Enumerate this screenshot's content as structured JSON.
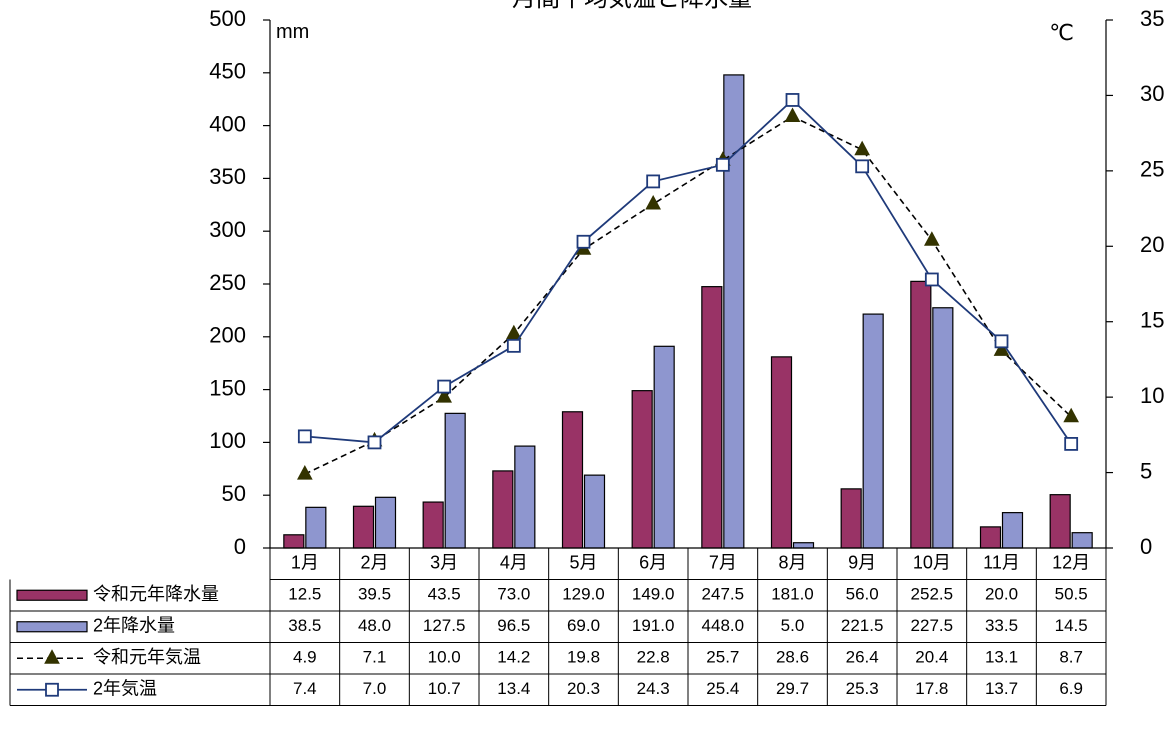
{
  "chart_data": {
    "type": "bar",
    "title": "月間平均気温と降水量",
    "left_unit": "mm",
    "right_unit": "℃",
    "categories": [
      "1月",
      "2月",
      "3月",
      "4月",
      "5月",
      "6月",
      "7月",
      "8月",
      "9月",
      "10月",
      "11月",
      "12月"
    ],
    "y_left": {
      "min": 0,
      "max": 500,
      "ticks": [
        "0",
        "50",
        "100",
        "150",
        "200",
        "250",
        "300",
        "350",
        "400",
        "450",
        "500"
      ]
    },
    "y_right": {
      "min": 0,
      "max": 35,
      "ticks": [
        "0",
        "5",
        "10",
        "15",
        "20",
        "25",
        "30",
        "35"
      ]
    },
    "series": [
      {
        "name": "令和元年降水量",
        "kind": "bar",
        "axis": "left",
        "color": "#993366",
        "values": [
          12.5,
          39.5,
          43.5,
          73.0,
          129.0,
          149.0,
          247.5,
          181.0,
          56.0,
          252.5,
          20.0,
          50.5
        ],
        "labels": [
          "12.5",
          "39.5",
          "43.5",
          "73.0",
          "129.0",
          "149.0",
          "247.5",
          "181.0",
          "56.0",
          "252.5",
          "20.0",
          "50.5"
        ]
      },
      {
        "name": "2年降水量",
        "kind": "bar",
        "axis": "left",
        "color": "#8e96cf",
        "values": [
          38.5,
          48.0,
          127.5,
          96.5,
          69.0,
          191.0,
          448.0,
          5.0,
          221.5,
          227.5,
          33.5,
          14.5
        ],
        "labels": [
          "38.5",
          "48.0",
          "127.5",
          "96.5",
          "69.0",
          "191.0",
          "448.0",
          "5.0",
          "221.5",
          "227.5",
          "33.5",
          "14.5"
        ]
      },
      {
        "name": "令和元年気温",
        "kind": "line",
        "axis": "right",
        "color": "#000000",
        "line_style": "dashed",
        "marker": "triangle",
        "marker_color": "#333300",
        "values": [
          4.9,
          7.1,
          10.0,
          14.2,
          19.8,
          22.8,
          25.7,
          28.6,
          26.4,
          20.4,
          13.1,
          8.7
        ],
        "labels": [
          "4.9",
          "7.1",
          "10.0",
          "14.2",
          "19.8",
          "22.8",
          "25.7",
          "28.6",
          "26.4",
          "20.4",
          "13.1",
          "8.7"
        ]
      },
      {
        "name": "2年気温",
        "kind": "line",
        "axis": "right",
        "color": "#1f3a7a",
        "line_style": "solid",
        "marker": "square-open",
        "values": [
          7.4,
          7.0,
          10.7,
          13.4,
          20.3,
          24.3,
          25.4,
          29.7,
          25.3,
          17.8,
          13.7,
          6.9
        ],
        "labels": [
          "7.4",
          "7.0",
          "10.7",
          "13.4",
          "20.3",
          "24.3",
          "25.4",
          "29.7",
          "25.3",
          "17.8",
          "13.7",
          "6.9"
        ]
      }
    ]
  }
}
